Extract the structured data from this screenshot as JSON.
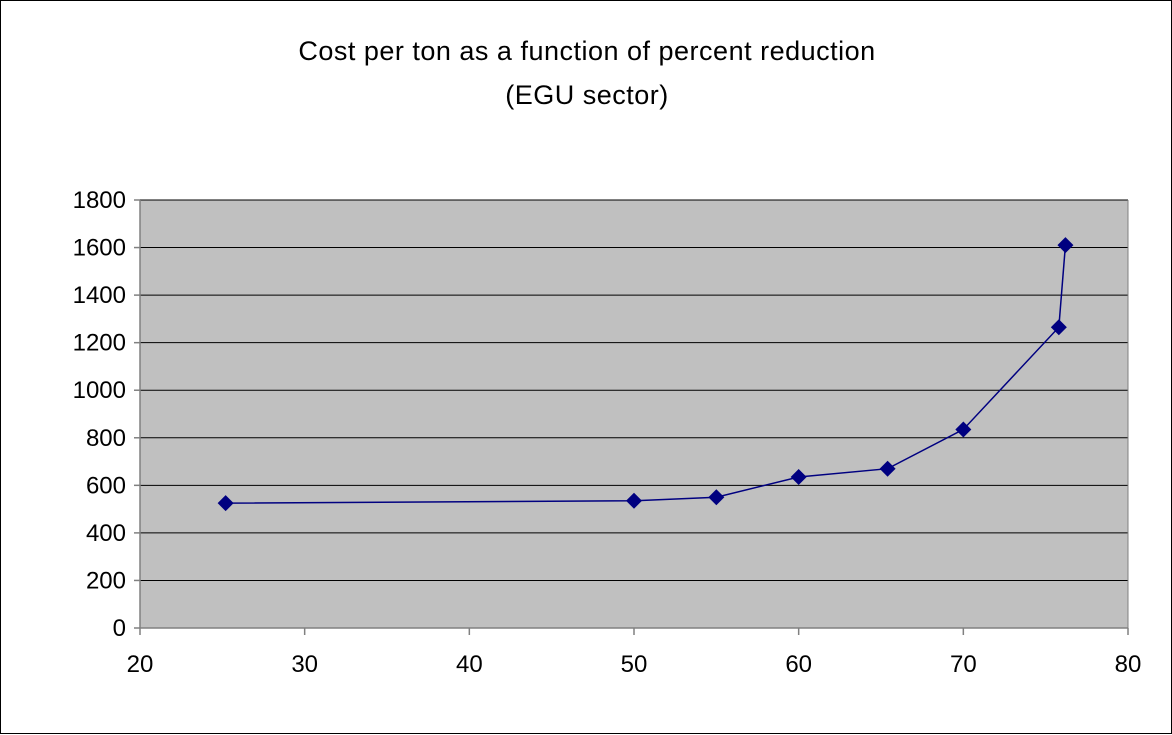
{
  "chart_data": {
    "type": "line",
    "title": "Cost per ton as a function of percent reduction",
    "subtitle": "(EGU sector)",
    "xlabel": "",
    "ylabel": "",
    "xlim": [
      20,
      80
    ],
    "ylim": [
      0,
      1800
    ],
    "xticks": [
      20,
      30,
      40,
      50,
      60,
      70,
      80
    ],
    "yticks": [
      0,
      200,
      400,
      600,
      800,
      1000,
      1200,
      1400,
      1600,
      1800
    ],
    "grid": "horizontal",
    "legend": "none",
    "series": [
      {
        "marker": "diamond",
        "x": [
          25.2,
          50,
          55,
          60,
          65.4,
          70,
          75.8,
          76.2
        ],
        "y": [
          525,
          535,
          550,
          635,
          670,
          835,
          1265,
          1610
        ]
      }
    ],
    "colors": {
      "plot_background": "#c0c0c0",
      "series": "#000080",
      "gridline": "#000000",
      "axis": "#808080"
    }
  }
}
